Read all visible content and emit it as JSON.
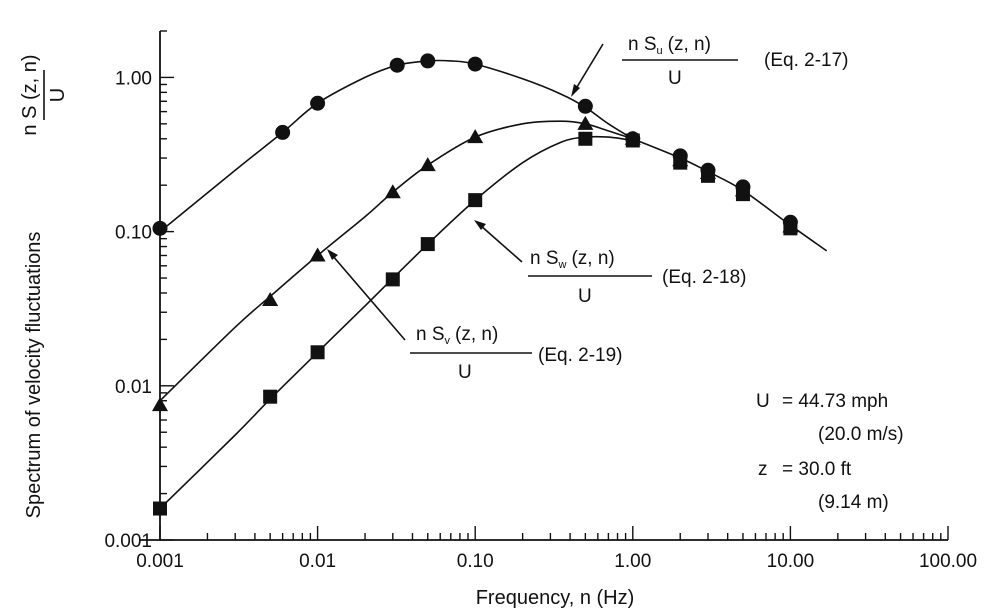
{
  "chart_data": {
    "type": "line",
    "x_scale": "log",
    "y_scale": "log",
    "xlim": [
      0.001,
      100
    ],
    "ylim": [
      0.001,
      2
    ],
    "xlabel": "Frequency, n (Hz)",
    "ylabel": "Spectrum of velocity fluctuations",
    "ylabel_formula_num": "n S (z, n)",
    "ylabel_formula_den": "U",
    "x_ticks": [
      "0.001",
      "0.01",
      "0.10",
      "1.00",
      "10.00",
      "100.00"
    ],
    "y_ticks": [
      "0.001",
      "0.01",
      "0.10",
      "1.00"
    ],
    "grid": false,
    "series": [
      {
        "name": "u",
        "marker": "circle",
        "label_num": "n S",
        "label_sub": "u",
        "label_args": "(z, n)",
        "label_den": "U",
        "label_eq": "(Eq. 2-17)",
        "points": [
          [
            0.001,
            0.105
          ],
          [
            0.006,
            0.44
          ],
          [
            0.01,
            0.68
          ],
          [
            0.032,
            1.2
          ],
          [
            0.05,
            1.28
          ],
          [
            0.1,
            1.22
          ],
          [
            0.5,
            0.65
          ],
          [
            1.0,
            0.4
          ],
          [
            2.0,
            0.31
          ],
          [
            3.0,
            0.25
          ],
          [
            5.0,
            0.195
          ],
          [
            10.0,
            0.115
          ]
        ],
        "curve": [
          [
            0.001,
            0.1
          ],
          [
            0.003,
            0.25
          ],
          [
            0.006,
            0.44
          ],
          [
            0.01,
            0.68
          ],
          [
            0.02,
            1.0
          ],
          [
            0.032,
            1.2
          ],
          [
            0.05,
            1.28
          ],
          [
            0.07,
            1.28
          ],
          [
            0.1,
            1.22
          ],
          [
            0.2,
            0.98
          ],
          [
            0.35,
            0.78
          ],
          [
            0.5,
            0.64
          ],
          [
            0.7,
            0.5
          ],
          [
            1.0,
            0.4
          ]
        ]
      },
      {
        "name": "w",
        "marker": "triangle",
        "label_num": "n S",
        "label_sub": "w",
        "label_args": "(z, n)",
        "label_den": "U",
        "label_eq": "(Eq. 2-18)",
        "points": [
          [
            0.001,
            0.0075
          ],
          [
            0.005,
            0.036
          ],
          [
            0.01,
            0.07
          ],
          [
            0.03,
            0.18
          ],
          [
            0.05,
            0.27
          ],
          [
            0.1,
            0.41
          ],
          [
            0.5,
            0.5
          ],
          [
            1.0,
            0.4
          ],
          [
            2.0,
            0.29
          ],
          [
            3.0,
            0.24
          ],
          [
            5.0,
            0.185
          ],
          [
            10.0,
            0.108
          ]
        ],
        "curve": [
          [
            0.001,
            0.008
          ],
          [
            0.003,
            0.024
          ],
          [
            0.005,
            0.038
          ],
          [
            0.01,
            0.07
          ],
          [
            0.02,
            0.125
          ],
          [
            0.03,
            0.18
          ],
          [
            0.05,
            0.27
          ],
          [
            0.1,
            0.41
          ],
          [
            0.2,
            0.5
          ],
          [
            0.35,
            0.52
          ],
          [
            0.5,
            0.5
          ],
          [
            0.7,
            0.45
          ],
          [
            1.0,
            0.4
          ]
        ]
      },
      {
        "name": "v",
        "marker": "square",
        "label_num": "n S",
        "label_sub": "v",
        "label_args": "(z, n)",
        "label_den": "U",
        "label_eq": "(Eq. 2-19)",
        "points": [
          [
            0.001,
            0.0016
          ],
          [
            0.005,
            0.0085
          ],
          [
            0.01,
            0.0165
          ],
          [
            0.03,
            0.049
          ],
          [
            0.05,
            0.083
          ],
          [
            0.1,
            0.16
          ],
          [
            0.5,
            0.4
          ],
          [
            1.0,
            0.39
          ],
          [
            2.0,
            0.28
          ],
          [
            3.0,
            0.23
          ],
          [
            5.0,
            0.175
          ],
          [
            10.0,
            0.105
          ]
        ],
        "curve": [
          [
            0.001,
            0.0016
          ],
          [
            0.003,
            0.0048
          ],
          [
            0.005,
            0.0082
          ],
          [
            0.01,
            0.0165
          ],
          [
            0.02,
            0.033
          ],
          [
            0.05,
            0.083
          ],
          [
            0.1,
            0.16
          ],
          [
            0.2,
            0.28
          ],
          [
            0.35,
            0.38
          ],
          [
            0.5,
            0.41
          ],
          [
            0.7,
            0.41
          ],
          [
            1.0,
            0.39
          ]
        ]
      }
    ],
    "common_tail": [
      [
        1.0,
        0.4
      ],
      [
        2.0,
        0.3
      ],
      [
        3.0,
        0.245
      ],
      [
        5.0,
        0.185
      ],
      [
        10.0,
        0.11
      ],
      [
        17.0,
        0.075
      ]
    ],
    "annotations": [
      {
        "lhs": "U",
        "rhs": "=  44.73 mph",
        "extra": "(20.0 m/s)"
      },
      {
        "lhs": "z",
        "rhs": "=  30.0 ft",
        "extra": "(9.14 m)"
      }
    ]
  }
}
